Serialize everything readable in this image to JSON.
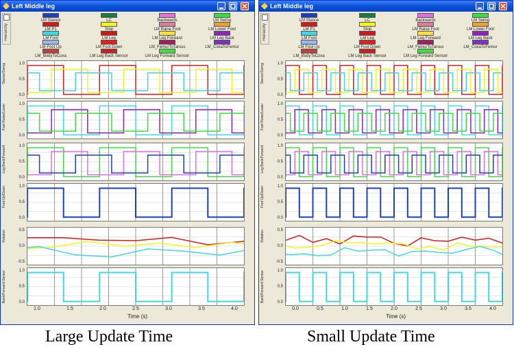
{
  "windows": [
    {
      "title": "Left Middle leg",
      "caption": "Large Update Time",
      "x_ticks": [
        "1.0",
        "1.5",
        "2.0",
        "2.5",
        "3.0",
        "3.5",
        "4.0"
      ],
      "xlabel": "Time (s)"
    },
    {
      "title": "Left Middle leg",
      "caption": "Small Update Time",
      "x_ticks": [
        "0.0",
        "0.5",
        "1.0",
        "1.5",
        "2.0",
        "2.5",
        "3.0",
        "3.5",
        "4.0"
      ],
      "xlabel": "Time (s)"
    }
  ],
  "side_tab": "Hierarchy",
  "legend": [
    {
      "label": "LM Stance",
      "color": "#1a3fc0"
    },
    {
      "label": "LC",
      "color": "#1d7a3a"
    },
    {
      "label": "Backwards",
      "color": "#e070e0"
    },
    {
      "label": "LM Swing",
      "color": "#3ddc3d"
    },
    {
      "label": "LM P1",
      "color": "#d11a1a"
    },
    {
      "label": "Stop",
      "color": "#f5f51a"
    },
    {
      "label": "LM Raise Foot",
      "color": "#e07aa0"
    },
    {
      "label": "LM Lower Foot",
      "color": "#f0a030"
    },
    {
      "label": "LM Foot",
      "color": "#3fd8e0"
    },
    {
      "label": "LM Leg",
      "color": "#d01818"
    },
    {
      "label": "LM Leg Forward",
      "color": "#ffe040"
    },
    {
      "label": "LM Leg Back",
      "color": "#9020c0"
    },
    {
      "label": "LM Foot Up",
      "color": "#9ab8f0"
    },
    {
      "label": "LM Foot Down",
      "color": "#e02020"
    },
    {
      "label": "LM_FemurToTarsus",
      "color": "#a02060"
    },
    {
      "label": "LM_CoxaToFemur",
      "color": "#8030c0"
    },
    {
      "label": "LM_BodyToCoxa",
      "color": "#c04040"
    },
    {
      "label": "LM Leg Back Sensor",
      "color": "#cc2020"
    },
    {
      "label": "LM Leg Forward Sensor",
      "color": "#40e040"
    }
  ],
  "panels": [
    {
      "ylabel": "Stance/Swing",
      "ticks": [
        "1.0",
        "0.5",
        "0.0"
      ]
    },
    {
      "ylabel": "Foot Raise/Lower",
      "ticks": [
        "1.0",
        "0.5",
        "0.0"
      ]
    },
    {
      "ylabel": "Leg Back/Forward",
      "ticks": [
        "1.0",
        "0.5",
        "0.0"
      ]
    },
    {
      "ylabel": "Foot Up/Down",
      "ticks": [
        "1.0",
        "0.5",
        "0.0"
      ]
    },
    {
      "ylabel": "Rotation",
      "ticks": [
        "0.5",
        "0.0",
        "-0.5"
      ]
    },
    {
      "ylabel": "Back/Forward Sensor",
      "ticks": [
        "1.0",
        "0.5",
        "0.0"
      ]
    }
  ]
}
